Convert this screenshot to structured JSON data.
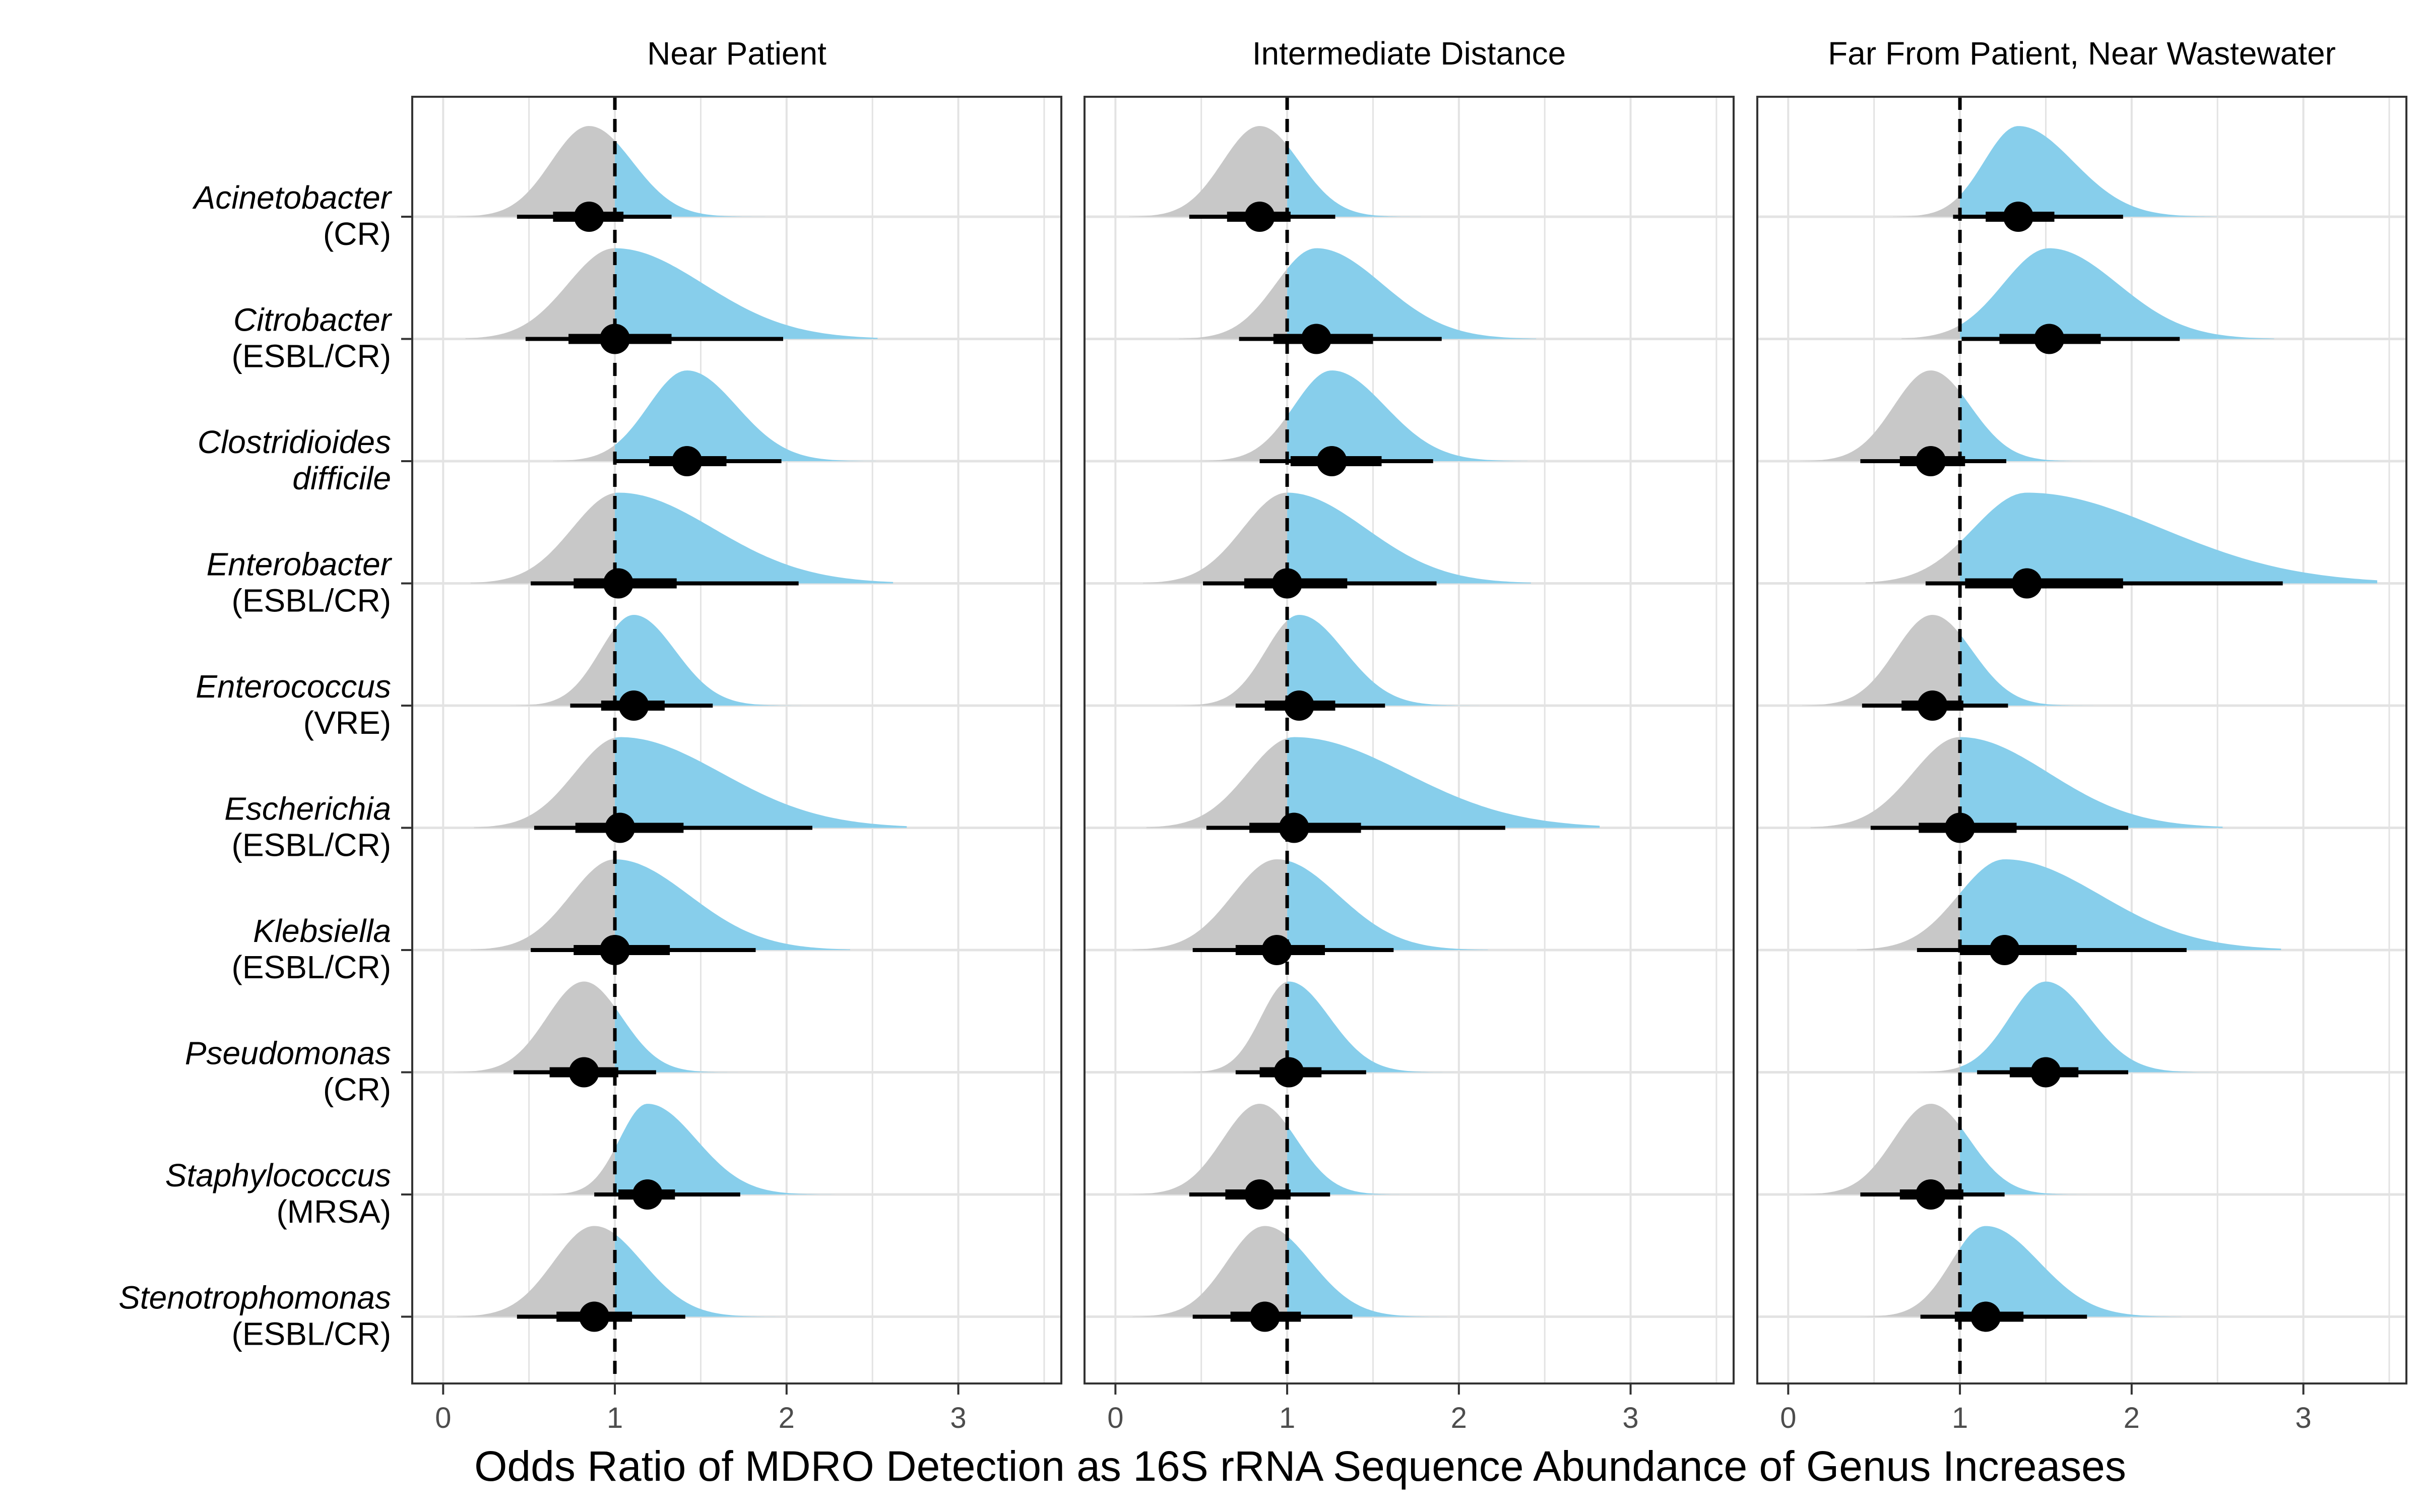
{
  "chart_data": {
    "type": "forest-density",
    "xlabel": "Odds Ratio of MDRO Detection as 16S rRNA Sequence Abundance of Genus Increases",
    "xlim": [
      -0.18,
      3.6
    ],
    "x_ticks": [
      0,
      1,
      2,
      3
    ],
    "x_tick_labels": [
      "0",
      "1",
      "2",
      "3"
    ],
    "reference_line": 1,
    "grid": true,
    "colors": {
      "below_one": "#c8c8c8",
      "above_one": "#87ceeb",
      "point": "#000000",
      "grid": "#e3e3e3",
      "panel_border": "#333333"
    },
    "rows": [
      {
        "genus": "Acinetobacter",
        "group": "(CR)"
      },
      {
        "genus": "Citrobacter",
        "group": "(ESBL/CR)"
      },
      {
        "genus": "Clostridioides",
        "group": "difficile"
      },
      {
        "genus": "Enterobacter",
        "group": "(ESBL/CR)"
      },
      {
        "genus": "Enterococcus",
        "group": "(VRE)"
      },
      {
        "genus": "Escherichia",
        "group": "(ESBL/CR)"
      },
      {
        "genus": "Klebsiella",
        "group": "(ESBL/CR)"
      },
      {
        "genus": "Pseudomonas",
        "group": "(CR)"
      },
      {
        "genus": "Staphylococcus",
        "group": "(MRSA)"
      },
      {
        "genus": "Stenotrophomonas",
        "group": "(ESBL/CR)"
      }
    ],
    "panels": [
      {
        "title": "Near Patient",
        "estimates": [
          {
            "median": 0.85,
            "inner": [
              0.64,
              1.05
            ],
            "outer": [
              0.43,
              1.33
            ]
          },
          {
            "median": 1.0,
            "inner": [
              0.73,
              1.33
            ],
            "outer": [
              0.48,
              1.98
            ]
          },
          {
            "median": 1.42,
            "inner": [
              1.2,
              1.65
            ],
            "outer": [
              0.99,
              1.97
            ]
          },
          {
            "median": 1.02,
            "inner": [
              0.76,
              1.36
            ],
            "outer": [
              0.51,
              2.07
            ]
          },
          {
            "median": 1.11,
            "inner": [
              0.92,
              1.29
            ],
            "outer": [
              0.74,
              1.57
            ]
          },
          {
            "median": 1.03,
            "inner": [
              0.77,
              1.4
            ],
            "outer": [
              0.53,
              2.15
            ]
          },
          {
            "median": 1.0,
            "inner": [
              0.76,
              1.32
            ],
            "outer": [
              0.51,
              1.82
            ]
          },
          {
            "median": 0.82,
            "inner": [
              0.62,
              1.02
            ],
            "outer": [
              0.41,
              1.24
            ]
          },
          {
            "median": 1.19,
            "inner": [
              1.02,
              1.35
            ],
            "outer": [
              0.88,
              1.73
            ]
          },
          {
            "median": 0.88,
            "inner": [
              0.66,
              1.1
            ],
            "outer": [
              0.43,
              1.41
            ]
          }
        ]
      },
      {
        "title": "Intermediate Distance",
        "estimates": [
          {
            "median": 0.84,
            "inner": [
              0.65,
              1.02
            ],
            "outer": [
              0.43,
              1.28
            ]
          },
          {
            "median": 1.17,
            "inner": [
              0.92,
              1.5
            ],
            "outer": [
              0.72,
              1.9
            ]
          },
          {
            "median": 1.26,
            "inner": [
              1.02,
              1.55
            ],
            "outer": [
              0.84,
              1.85
            ]
          },
          {
            "median": 1.0,
            "inner": [
              0.75,
              1.35
            ],
            "outer": [
              0.51,
              1.87
            ]
          },
          {
            "median": 1.07,
            "inner": [
              0.87,
              1.28
            ],
            "outer": [
              0.7,
              1.57
            ]
          },
          {
            "median": 1.04,
            "inner": [
              0.78,
              1.43
            ],
            "outer": [
              0.53,
              2.27
            ]
          },
          {
            "median": 0.94,
            "inner": [
              0.7,
              1.22
            ],
            "outer": [
              0.45,
              1.62
            ]
          },
          {
            "median": 1.01,
            "inner": [
              0.84,
              1.2
            ],
            "outer": [
              0.7,
              1.46
            ]
          },
          {
            "median": 0.84,
            "inner": [
              0.64,
              1.02
            ],
            "outer": [
              0.43,
              1.25
            ]
          },
          {
            "median": 0.87,
            "inner": [
              0.67,
              1.08
            ],
            "outer": [
              0.45,
              1.38
            ]
          }
        ]
      },
      {
        "title": "Far From Patient, Near Wastewater",
        "estimates": [
          {
            "median": 1.34,
            "inner": [
              1.15,
              1.55
            ],
            "outer": [
              0.96,
              1.95
            ]
          },
          {
            "median": 1.52,
            "inner": [
              1.23,
              1.82
            ],
            "outer": [
              1.01,
              2.28
            ]
          },
          {
            "median": 0.83,
            "inner": [
              0.65,
              1.03
            ],
            "outer": [
              0.42,
              1.27
            ]
          },
          {
            "median": 1.39,
            "inner": [
              1.03,
              1.95
            ],
            "outer": [
              0.8,
              2.88
            ]
          },
          {
            "median": 0.84,
            "inner": [
              0.66,
              1.02
            ],
            "outer": [
              0.43,
              1.28
            ]
          },
          {
            "median": 1.0,
            "inner": [
              0.76,
              1.33
            ],
            "outer": [
              0.48,
              1.98
            ]
          },
          {
            "median": 1.26,
            "inner": [
              1.0,
              1.68
            ],
            "outer": [
              0.75,
              2.32
            ]
          },
          {
            "median": 1.5,
            "inner": [
              1.29,
              1.69
            ],
            "outer": [
              1.1,
              1.98
            ]
          },
          {
            "median": 0.83,
            "inner": [
              0.65,
              1.02
            ],
            "outer": [
              0.42,
              1.26
            ]
          },
          {
            "median": 1.15,
            "inner": [
              0.97,
              1.37
            ],
            "outer": [
              0.77,
              1.74
            ]
          }
        ]
      }
    ]
  }
}
